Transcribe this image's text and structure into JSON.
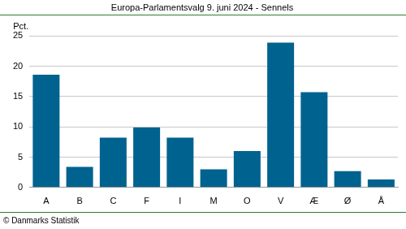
{
  "chart_data": {
    "type": "bar",
    "title": "Europa-Parlamentsvalg 9. juni 2024 - Sennels",
    "ylabel": "Pct.",
    "source": "© Danmarks Statistik",
    "categories": [
      "A",
      "B",
      "C",
      "F",
      "I",
      "M",
      "O",
      "V",
      "Æ",
      "Ø",
      "Å"
    ],
    "values": [
      18.6,
      3.4,
      8.2,
      9.9,
      8.2,
      3.0,
      6.0,
      23.9,
      15.7,
      2.7,
      1.3
    ],
    "color": "#00628f",
    "ylim": [
      0,
      25
    ],
    "yticks": [
      0,
      5,
      10,
      15,
      20,
      25
    ],
    "grid": true
  }
}
